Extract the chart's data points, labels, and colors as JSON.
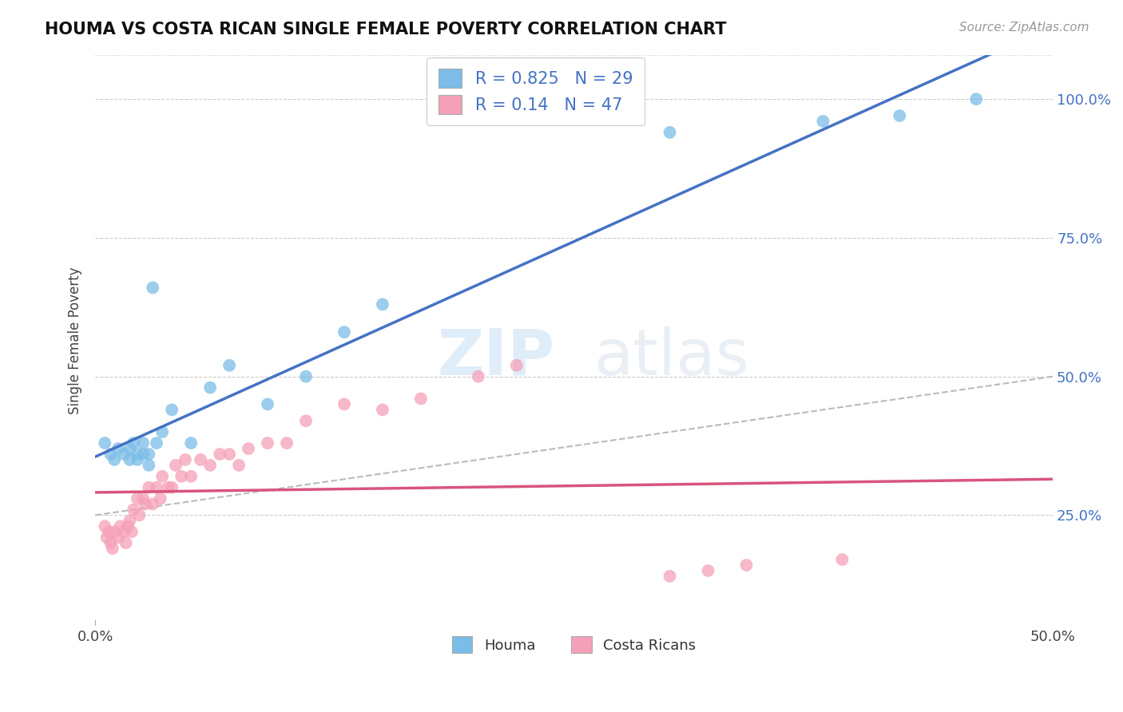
{
  "title": "HOUMA VS COSTA RICAN SINGLE FEMALE POVERTY CORRELATION CHART",
  "source_text": "Source: ZipAtlas.com",
  "ylabel": "Single Female Poverty",
  "xlim": [
    0.0,
    0.5
  ],
  "ylim": [
    0.05,
    1.08
  ],
  "xtick_positions": [
    0.0,
    0.5
  ],
  "xtick_labels": [
    "0.0%",
    "50.0%"
  ],
  "ytick_positions": [
    0.25,
    0.5,
    0.75,
    1.0
  ],
  "ytick_labels": [
    "25.0%",
    "50.0%",
    "75.0%",
    "100.0%"
  ],
  "houma_color": "#7bbde8",
  "costa_color": "#f5a0b8",
  "houma_R": 0.825,
  "houma_N": 29,
  "costa_R": 0.14,
  "costa_N": 47,
  "legend_label_houma": "Houma",
  "legend_label_costa": "Costa Ricans",
  "watermark_zip": "ZIP",
  "watermark_atlas": "atlas",
  "background_color": "#ffffff",
  "grid_color": "#cccccc",
  "houma_line_color": "#4472c4",
  "costa_line_color": "#d9547c",
  "dashed_line_color": "#bbbbbb",
  "houma_x": [
    0.005,
    0.008,
    0.01,
    0.012,
    0.015,
    0.018,
    0.018,
    0.02,
    0.022,
    0.022,
    0.025,
    0.025,
    0.028,
    0.028,
    0.03,
    0.032,
    0.035,
    0.04,
    0.05,
    0.06,
    0.07,
    0.09,
    0.11,
    0.13,
    0.15,
    0.3,
    0.38,
    0.42,
    0.46
  ],
  "houma_y": [
    0.38,
    0.36,
    0.35,
    0.37,
    0.36,
    0.35,
    0.37,
    0.38,
    0.35,
    0.36,
    0.36,
    0.38,
    0.34,
    0.36,
    0.66,
    0.38,
    0.4,
    0.44,
    0.38,
    0.48,
    0.52,
    0.45,
    0.5,
    0.58,
    0.63,
    0.94,
    0.96,
    0.97,
    1.0
  ],
  "costa_x": [
    0.005,
    0.006,
    0.007,
    0.008,
    0.009,
    0.01,
    0.012,
    0.013,
    0.015,
    0.016,
    0.017,
    0.018,
    0.019,
    0.02,
    0.022,
    0.023,
    0.025,
    0.026,
    0.028,
    0.03,
    0.032,
    0.034,
    0.035,
    0.038,
    0.04,
    0.042,
    0.045,
    0.047,
    0.05,
    0.055,
    0.06,
    0.065,
    0.07,
    0.075,
    0.08,
    0.09,
    0.1,
    0.11,
    0.13,
    0.15,
    0.17,
    0.2,
    0.22,
    0.3,
    0.32,
    0.34,
    0.39
  ],
  "costa_y": [
    0.23,
    0.21,
    0.22,
    0.2,
    0.19,
    0.22,
    0.21,
    0.23,
    0.22,
    0.2,
    0.23,
    0.24,
    0.22,
    0.26,
    0.28,
    0.25,
    0.28,
    0.27,
    0.3,
    0.27,
    0.3,
    0.28,
    0.32,
    0.3,
    0.3,
    0.34,
    0.32,
    0.35,
    0.32,
    0.35,
    0.34,
    0.36,
    0.36,
    0.34,
    0.37,
    0.38,
    0.38,
    0.42,
    0.45,
    0.44,
    0.46,
    0.5,
    0.52,
    0.14,
    0.15,
    0.16,
    0.17
  ]
}
